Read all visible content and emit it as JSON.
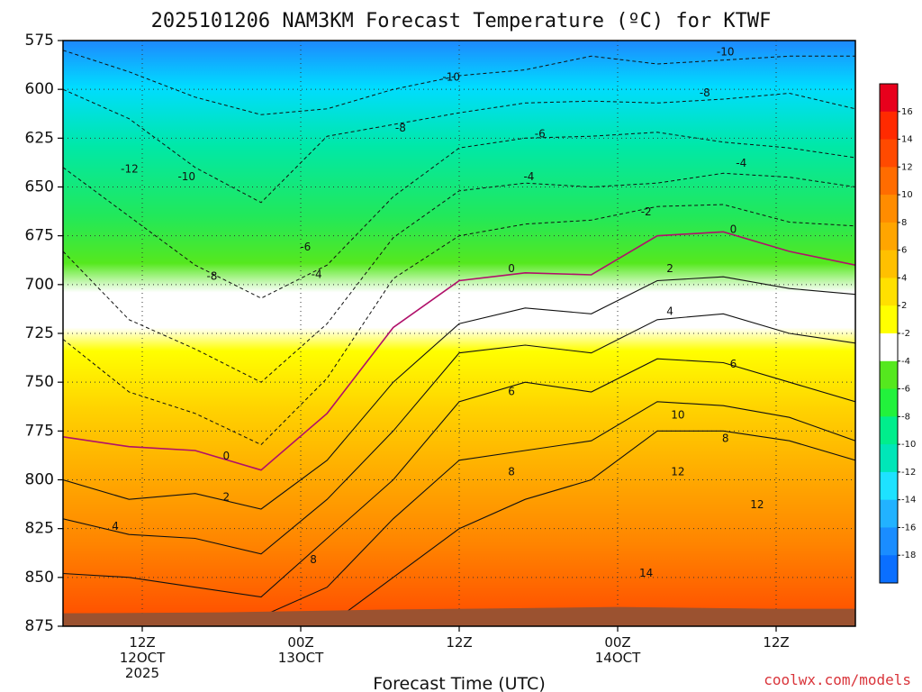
{
  "chart_data": {
    "type": "heatmap",
    "title": "2025101206 NAM3KM Forecast Temperature (ºC) for KTWF",
    "xlabel": "Forecast Time (UTC)",
    "ylabel": "",
    "credit": "coolwx.com/models",
    "y_axis": {
      "reversed": true,
      "range": [
        575,
        875
      ],
      "ticks": [
        575,
        600,
        625,
        650,
        675,
        700,
        725,
        750,
        775,
        800,
        825,
        850,
        875
      ]
    },
    "x_axis": {
      "range_hours": [
        0,
        50
      ],
      "ticks": [
        {
          "hour": 5,
          "lines": [
            "12Z",
            "12OCT",
            "2025"
          ]
        },
        {
          "hour": 15,
          "lines": [
            "00Z",
            "13OCT"
          ]
        },
        {
          "hour": 25,
          "lines": [
            "12Z"
          ]
        },
        {
          "hour": 35,
          "lines": [
            "00Z",
            "14OCT"
          ]
        },
        {
          "hour": 45,
          "lines": [
            "12Z"
          ]
        }
      ]
    },
    "colorbar": {
      "levels": [
        -18,
        -16,
        -14,
        -12,
        -10,
        -8,
        -6,
        -4,
        -2,
        2,
        4,
        6,
        8,
        10,
        12,
        14,
        16
      ],
      "colors": [
        "#0a6fff",
        "#1a8dff",
        "#22b2ff",
        "#1ee2ff",
        "#00e6b8",
        "#00ee8c",
        "#22f23c",
        "#55e81e",
        "#ffffff",
        "#ffff00",
        "#ffe000",
        "#ffc000",
        "#ffa500",
        "#ff8c00",
        "#ff6c00",
        "#ff4a00",
        "#ff2a00",
        "#e8001c"
      ]
    },
    "isotherms": [
      {
        "value": -10,
        "pressure": [
          580,
          591,
          604,
          613,
          610,
          600,
          593,
          590,
          583,
          587,
          585,
          583,
          583
        ]
      },
      {
        "value": -8,
        "pressure": [
          600,
          615,
          640,
          658,
          624,
          618,
          612,
          607,
          606,
          607,
          605,
          602,
          610
        ]
      },
      {
        "value": -6,
        "pressure": [
          640,
          665,
          690,
          707,
          690,
          655,
          630,
          625,
          624,
          622,
          627,
          630,
          635
        ]
      },
      {
        "value": -4,
        "pressure": [
          683,
          718,
          733,
          750,
          720,
          676,
          652,
          648,
          650,
          648,
          643,
          645,
          650
        ]
      },
      {
        "value": -2,
        "pressure": [
          728,
          755,
          766,
          782,
          748,
          697,
          675,
          669,
          667,
          660,
          659,
          668,
          670
        ]
      },
      {
        "value": 0,
        "pressure": [
          778,
          783,
          785,
          795,
          766,
          722,
          698,
          694,
          695,
          675,
          673,
          683,
          690
        ]
      },
      {
        "value": 2,
        "pressure": [
          800,
          810,
          807,
          815,
          790,
          750,
          720,
          712,
          715,
          698,
          696,
          702,
          705
        ]
      },
      {
        "value": 4,
        "pressure": [
          820,
          828,
          830,
          838,
          810,
          775,
          735,
          731,
          735,
          718,
          715,
          725,
          730
        ]
      },
      {
        "value": 6,
        "pressure": [
          848,
          850,
          855,
          860,
          830,
          800,
          760,
          750,
          755,
          738,
          740,
          750,
          760
        ]
      },
      {
        "value": 8,
        "pressure": [
          875,
          875,
          872,
          870,
          855,
          820,
          790,
          785,
          780,
          760,
          762,
          768,
          780
        ]
      },
      {
        "value": 10,
        "pressure": [
          875,
          875,
          875,
          875,
          875,
          850,
          825,
          810,
          800,
          775,
          775,
          780,
          790
        ]
      }
    ],
    "contour_labels": [
      {
        "text": "-10",
        "hour": 24.5,
        "pressure": 594
      },
      {
        "text": "-10",
        "hour": 41.8,
        "pressure": 581
      },
      {
        "text": "-12",
        "hour": 4.2,
        "pressure": 641
      },
      {
        "text": "-10",
        "hour": 7.8,
        "pressure": 645
      },
      {
        "text": "-8",
        "hour": 21.3,
        "pressure": 620
      },
      {
        "text": "-8",
        "hour": 40.5,
        "pressure": 602
      },
      {
        "text": "-8",
        "hour": 9.4,
        "pressure": 696
      },
      {
        "text": "-6",
        "hour": 15.3,
        "pressure": 681
      },
      {
        "text": "-6",
        "hour": 30.1,
        "pressure": 623
      },
      {
        "text": "-4",
        "hour": 16.0,
        "pressure": 695
      },
      {
        "text": "-4",
        "hour": 29.4,
        "pressure": 645
      },
      {
        "text": "-4",
        "hour": 42.8,
        "pressure": 638
      },
      {
        "text": "-2",
        "hour": 36.8,
        "pressure": 663
      },
      {
        "text": "0",
        "hour": 10.3,
        "pressure": 788
      },
      {
        "text": "0",
        "hour": 28.3,
        "pressure": 692
      },
      {
        "text": "0",
        "hour": 42.3,
        "pressure": 672
      },
      {
        "text": "2",
        "hour": 10.3,
        "pressure": 809
      },
      {
        "text": "2",
        "hour": 38.3,
        "pressure": 692
      },
      {
        "text": "4",
        "hour": 3.3,
        "pressure": 824
      },
      {
        "text": "4",
        "hour": 38.3,
        "pressure": 714
      },
      {
        "text": "6",
        "hour": 28.3,
        "pressure": 755
      },
      {
        "text": "6",
        "hour": 42.3,
        "pressure": 741
      },
      {
        "text": "8",
        "hour": 15.8,
        "pressure": 841
      },
      {
        "text": "8",
        "hour": 28.3,
        "pressure": 796
      },
      {
        "text": "8",
        "hour": 41.8,
        "pressure": 779
      },
      {
        "text": "10",
        "hour": 38.8,
        "pressure": 767
      },
      {
        "text": "12",
        "hour": 38.8,
        "pressure": 796
      },
      {
        "text": "12",
        "hour": 43.8,
        "pressure": 813
      },
      {
        "text": "14",
        "hour": 36.8,
        "pressure": 848
      }
    ],
    "ground_surface_hpa": 867
  }
}
